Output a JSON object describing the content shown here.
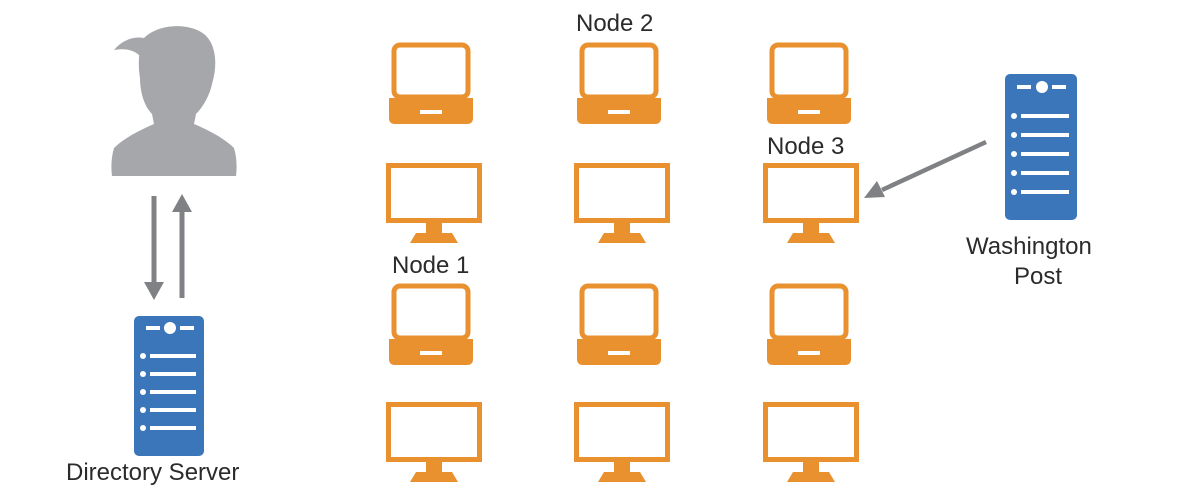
{
  "labels": {
    "node1": "Node 1",
    "node2": "Node 2",
    "node3": "Node 3",
    "directory_server": "Directory Server",
    "washington_post_line1": "Washington",
    "washington_post_line2": "Post"
  },
  "colors": {
    "node_orange": "#e8912e",
    "server_blue": "#3a76b9",
    "user_gray": "#a5a7aa",
    "arrow_gray": "#7f8184"
  },
  "icons": {
    "user": "user-silhouette-icon",
    "server": "server-tower-icon",
    "laptop": "laptop-icon",
    "monitor": "desktop-monitor-icon"
  }
}
